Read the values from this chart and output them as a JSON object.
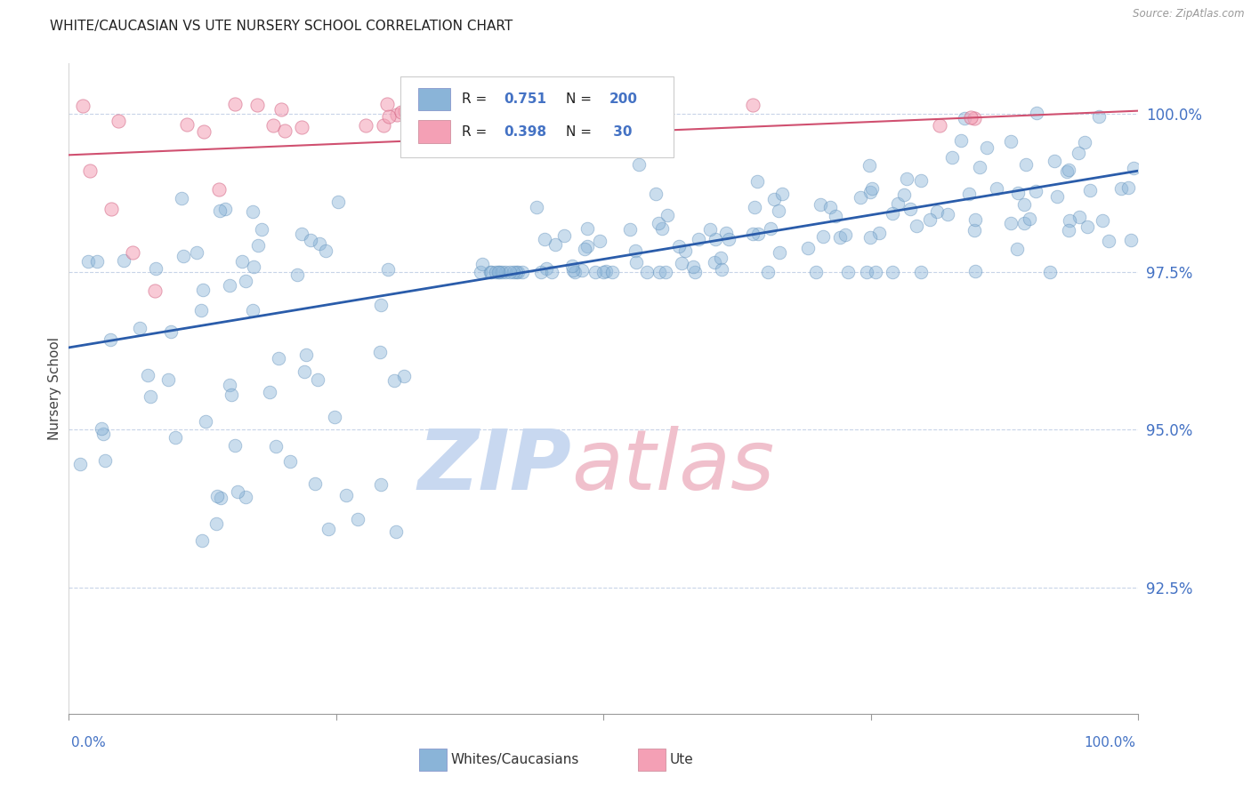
{
  "title": "WHITE/CAUCASIAN VS UTE NURSERY SCHOOL CORRELATION CHART",
  "source": "Source: ZipAtlas.com",
  "ylabel": "Nursery School",
  "blue_R": 0.751,
  "blue_N": 200,
  "pink_R": 0.398,
  "pink_N": 30,
  "blue_color": "#8ab4d8",
  "blue_edge_color": "#6090bb",
  "blue_line_color": "#2a5caa",
  "pink_color": "#f4a0b5",
  "pink_edge_color": "#d06080",
  "pink_line_color": "#d05070",
  "watermark_zip_color": "#c8d8f0",
  "watermark_atlas_color": "#f0c0cc",
  "xmin": 0.0,
  "xmax": 1.0,
  "ymin": 0.905,
  "ymax": 1.008,
  "yticks": [
    0.925,
    0.95,
    0.975,
    1.0
  ],
  "ytick_labels": [
    "92.5%",
    "95.0%",
    "97.5%",
    "100.0%"
  ],
  "title_fontsize": 11,
  "axis_color": "#4472c4",
  "background_color": "#ffffff",
  "grid_color": "#c8d4e8",
  "blue_trendline_start_y": 0.963,
  "blue_trendline_end_y": 0.991,
  "pink_trendline_start_y": 0.9935,
  "pink_trendline_end_y": 1.0005
}
